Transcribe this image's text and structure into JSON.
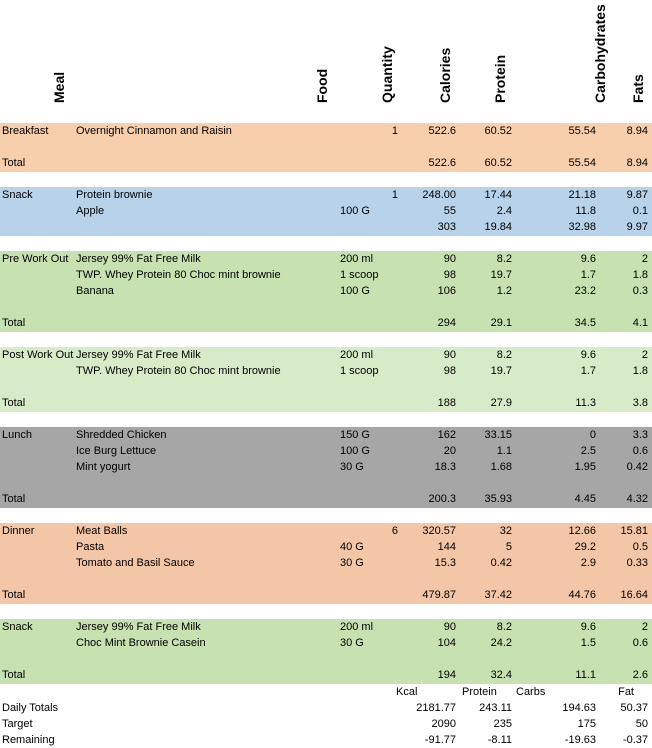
{
  "headers": {
    "meal": "Meal",
    "food": "Food",
    "quantity": "Quantity",
    "calories": "Calories",
    "protein": "Protein",
    "carbohydrates": "Carbohydrates",
    "fats": "Fats"
  },
  "colors": {
    "breakfast": "#f8cfad",
    "snack": "#b8d2e9",
    "pre_work_out": "#c7e1b1",
    "post_work_out": "#d8ebc8",
    "lunch": "#a6a6a6",
    "dinner": "#f4c6a8",
    "snack2": "#c7e1b1"
  },
  "rows": [
    {
      "meal": "Breakfast",
      "food": "Overnight Cinnamon and Raisin",
      "unit": "",
      "qty": "1",
      "cal": "522.6",
      "pro": "60.52",
      "carb": "55.54",
      "fat": "8.94"
    },
    {
      "meal": "Total",
      "food": "",
      "unit": "",
      "qty": "",
      "cal": "522.6",
      "pro": "60.52",
      "carb": "55.54",
      "fat": "8.94"
    },
    {
      "meal": "Snack",
      "food": "Protein brownie",
      "unit": "",
      "qty": "1",
      "cal": "248.00",
      "pro": "17.44",
      "carb": "21.18",
      "fat": "9.87"
    },
    {
      "meal": "",
      "food": "Apple",
      "unit": "100 G",
      "qty": "",
      "cal": "55",
      "pro": "2.4",
      "carb": "11.8",
      "fat": "0.1"
    },
    {
      "meal": "",
      "food": "",
      "unit": "",
      "qty": "",
      "cal": "303",
      "pro": "19.84",
      "carb": "32.98",
      "fat": "9.97"
    },
    {
      "meal": "Pre Work Out",
      "food": "Jersey 99% Fat Free Milk",
      "unit": "200 ml",
      "qty": "",
      "cal": "90",
      "pro": "8.2",
      "carb": "9.6",
      "fat": "2"
    },
    {
      "meal": "",
      "food": "TWP. Whey Protein 80 Choc mint brownie",
      "unit": "1 scoop",
      "qty": "",
      "cal": "98",
      "pro": "19.7",
      "carb": "1.7",
      "fat": "1.8"
    },
    {
      "meal": "",
      "food": "Banana",
      "unit": "100 G",
      "qty": "",
      "cal": "106",
      "pro": "1.2",
      "carb": "23.2",
      "fat": "0.3"
    },
    {
      "meal": "Total",
      "food": "",
      "unit": "",
      "qty": "",
      "cal": "294",
      "pro": "29.1",
      "carb": "34.5",
      "fat": "4.1"
    },
    {
      "meal": "Post Work Out",
      "food": "Jersey 99% Fat Free Milk",
      "unit": "200 ml",
      "qty": "",
      "cal": "90",
      "pro": "8.2",
      "carb": "9.6",
      "fat": "2"
    },
    {
      "meal": "",
      "food": "TWP. Whey Protein 80 Choc mint brownie",
      "unit": "1 scoop",
      "qty": "",
      "cal": "98",
      "pro": "19.7",
      "carb": "1.7",
      "fat": "1.8"
    },
    {
      "meal": "Total",
      "food": "",
      "unit": "",
      "qty": "",
      "cal": "188",
      "pro": "27.9",
      "carb": "11.3",
      "fat": "3.8"
    },
    {
      "meal": "Lunch",
      "food": "Shredded Chicken",
      "unit": "150 G",
      "qty": "",
      "cal": "162",
      "pro": "33.15",
      "carb": "0",
      "fat": "3.3"
    },
    {
      "meal": "",
      "food": "Ice Burg Lettuce",
      "unit": "100 G",
      "qty": "",
      "cal": "20",
      "pro": "1.1",
      "carb": "2.5",
      "fat": "0.6"
    },
    {
      "meal": "",
      "food": "Mint yogurt",
      "unit": "30 G",
      "qty": "",
      "cal": "18.3",
      "pro": "1.68",
      "carb": "1.95",
      "fat": "0.42"
    },
    {
      "meal": "Total",
      "food": "",
      "unit": "",
      "qty": "",
      "cal": "200.3",
      "pro": "35.93",
      "carb": "4.45",
      "fat": "4.32"
    },
    {
      "meal": "Dinner",
      "food": "Meat Balls",
      "unit": "",
      "qty": "6",
      "cal": "320.57",
      "pro": "32",
      "carb": "12.66",
      "fat": "15.81"
    },
    {
      "meal": "",
      "food": "Pasta",
      "unit": "40 G",
      "qty": "",
      "cal": "144",
      "pro": "5",
      "carb": "29.2",
      "fat": "0.5"
    },
    {
      "meal": "",
      "food": "Tomato and Basil Sauce",
      "unit": "30 G",
      "qty": "",
      "cal": "15.3",
      "pro": "0.42",
      "carb": "2.9",
      "fat": "0.33"
    },
    {
      "meal": "Total",
      "food": "",
      "unit": "",
      "qty": "",
      "cal": "479.87",
      "pro": "37.42",
      "carb": "44.76",
      "fat": "16.64"
    },
    {
      "meal": "Snack",
      "food": "Jersey 99% Fat Free Milk",
      "unit": "200 ml",
      "qty": "",
      "cal": "90",
      "pro": "8.2",
      "carb": "9.6",
      "fat": "2"
    },
    {
      "meal": "",
      "food": "Choc Mint Brownie Casein",
      "unit": "30 G",
      "qty": "",
      "cal": "104",
      "pro": "24.2",
      "carb": "1.5",
      "fat": "0.6"
    },
    {
      "meal": "Total",
      "food": "",
      "unit": "",
      "qty": "",
      "cal": "194",
      "pro": "32.4",
      "carb": "11.1",
      "fat": "2.6"
    }
  ],
  "summary_labels": {
    "kcal": "Kcal",
    "protein": "Protein",
    "carbs": "Carbs",
    "fat": "Fat"
  },
  "summary": [
    {
      "label": "Daily Totals",
      "cal": "2181.77",
      "pro": "243.11",
      "carb": "194.63",
      "fat": "50.37"
    },
    {
      "label": "Target",
      "cal": "2090",
      "pro": "235",
      "carb": "175",
      "fat": "50"
    },
    {
      "label": "Remaining",
      "cal": "-91.77",
      "pro": "-8.11",
      "carb": "-19.63",
      "fat": "-0.37"
    }
  ]
}
